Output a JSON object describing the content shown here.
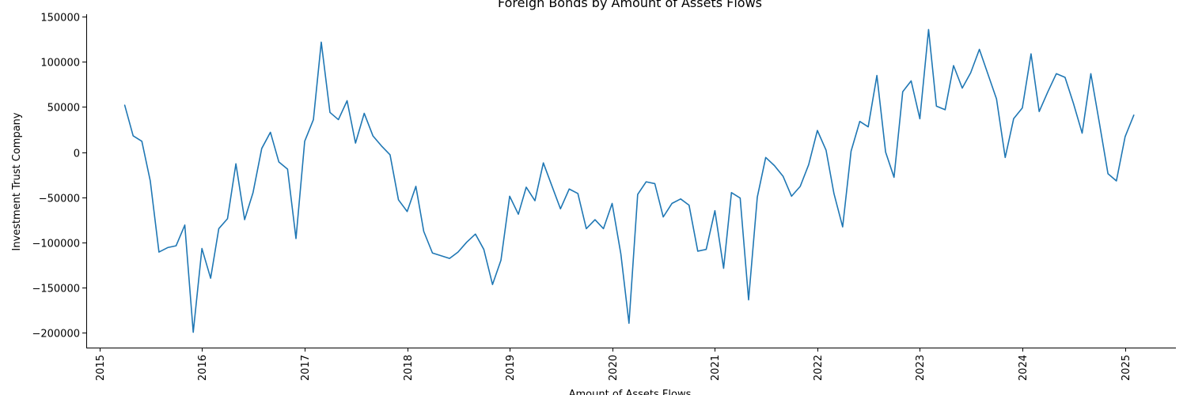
{
  "chart_data": {
    "type": "line",
    "title": "Foreign Bonds by Amount of Assets Flows",
    "xlabel": "Amount of Assets Flows",
    "ylabel": "Investment Trust Company",
    "xlim": [
      "2014-11-15",
      "2025-07-01"
    ],
    "ylim": [
      -217000,
      153000
    ],
    "x_ticks": [
      "2015-01-01",
      "2016-01-01",
      "2017-01-01",
      "2018-01-01",
      "2019-01-01",
      "2020-01-01",
      "2021-01-01",
      "2022-01-01",
      "2023-01-01",
      "2024-01-01",
      "2025-01-01"
    ],
    "x_tick_labels": [
      "2015",
      "2016",
      "2017",
      "2018",
      "2019",
      "2020",
      "2021",
      "2022",
      "2023",
      "2024",
      "2025"
    ],
    "y_ticks": [
      150000,
      100000,
      50000,
      0,
      -50000,
      -100000,
      -150000,
      -200000
    ],
    "y_tick_labels": [
      "150000",
      "100000",
      "50000",
      "0",
      "−50000",
      "−100000",
      "−150000",
      "−200000"
    ],
    "grid": false,
    "color": "#1f77b4",
    "series": [
      {
        "x": [
          "2015-04",
          "2015-05",
          "2015-06",
          "2015-07",
          "2015-08",
          "2015-09",
          "2015-10",
          "2015-11",
          "2015-12",
          "2016-01",
          "2016-02",
          "2016-03",
          "2016-04",
          "2016-05",
          "2016-06",
          "2016-07",
          "2016-08",
          "2016-09",
          "2016-10",
          "2016-11",
          "2016-12",
          "2017-01",
          "2017-02",
          "2017-03",
          "2017-04",
          "2017-05",
          "2017-06",
          "2017-07",
          "2017-08",
          "2017-09",
          "2017-10",
          "2017-11",
          "2017-12",
          "2018-01",
          "2018-02",
          "2018-03",
          "2018-04",
          "2018-05",
          "2018-06",
          "2018-07",
          "2018-08",
          "2018-09",
          "2018-10",
          "2018-11",
          "2018-12",
          "2019-01",
          "2019-02",
          "2019-03",
          "2019-04",
          "2019-05",
          "2019-06",
          "2019-07",
          "2019-08",
          "2019-09",
          "2019-10",
          "2019-11",
          "2019-12",
          "2020-01",
          "2020-02",
          "2020-03",
          "2020-04",
          "2020-05",
          "2020-06",
          "2020-07",
          "2020-08",
          "2020-09",
          "2020-10",
          "2020-11",
          "2020-12",
          "2021-01",
          "2021-02",
          "2021-03",
          "2021-04",
          "2021-05",
          "2021-06",
          "2021-07",
          "2021-08",
          "2021-09",
          "2021-10",
          "2021-11",
          "2021-12",
          "2022-01",
          "2022-02",
          "2022-03",
          "2022-04",
          "2022-05",
          "2022-06",
          "2022-07",
          "2022-08",
          "2022-09",
          "2022-10",
          "2022-11",
          "2022-12",
          "2023-01",
          "2023-02",
          "2023-03",
          "2023-04",
          "2023-05",
          "2023-06",
          "2023-07",
          "2023-08",
          "2023-09",
          "2023-10",
          "2023-11",
          "2023-12",
          "2024-01",
          "2024-02",
          "2024-03",
          "2024-04",
          "2024-05",
          "2024-06",
          "2024-07",
          "2024-08",
          "2024-09",
          "2024-10",
          "2024-11",
          "2024-12",
          "2025-01",
          "2025-02"
        ],
        "values": [
          52000,
          18000,
          12000,
          -32000,
          -111000,
          -106000,
          -104000,
          -81000,
          -200000,
          -107000,
          -140000,
          -85000,
          -74000,
          -13000,
          -75000,
          -45000,
          4000,
          22000,
          -11000,
          -19000,
          -96000,
          12000,
          36000,
          122000,
          44000,
          36000,
          57000,
          10000,
          43000,
          18000,
          7000,
          -3000,
          -53000,
          -66000,
          -38000,
          -88000,
          -112000,
          -115000,
          -118000,
          -111000,
          -100000,
          -91000,
          -108000,
          -147000,
          -120000,
          -49000,
          -69000,
          -39000,
          -54000,
          -12000,
          -38000,
          -63000,
          -41000,
          -46000,
          -85000,
          -75000,
          -85000,
          -57000,
          -113000,
          -190000,
          -47000,
          -33000,
          -35000,
          -72000,
          -57000,
          -52000,
          -59000,
          -110000,
          -108000,
          -65000,
          -129000,
          -45000,
          -51000,
          -164000,
          -50000,
          -6000,
          -15000,
          -27000,
          -49000,
          -38000,
          -14000,
          24000,
          2000,
          -46000,
          -83000,
          1000,
          34000,
          28000,
          85000,
          0,
          -28000,
          67000,
          79000,
          37000,
          136000,
          51000,
          47000,
          96000,
          71000,
          88000,
          114000,
          86000,
          59000,
          -6000,
          37000,
          49000,
          109000,
          45000,
          67000,
          87000,
          83000,
          54000,
          21000,
          87000,
          33000,
          -24000,
          -32000,
          17000,
          41000
        ]
      }
    ]
  }
}
